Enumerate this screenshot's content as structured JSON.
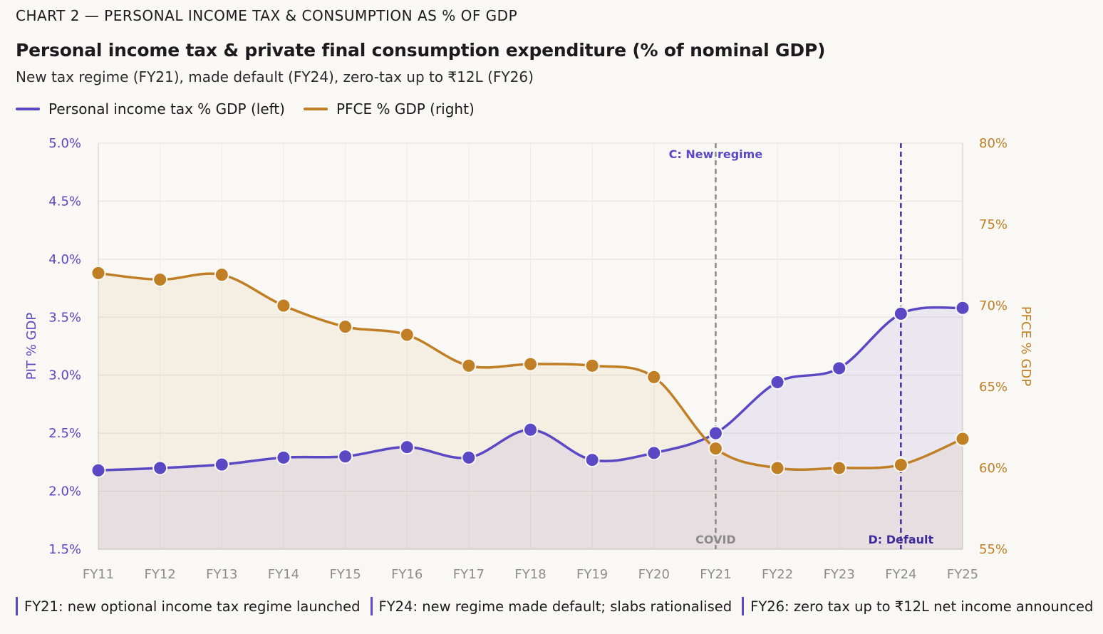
{
  "header": {
    "kicker": "CHART 2 — PERSONAL INCOME TAX & CONSUMPTION AS % OF GDP",
    "title": "Personal income tax & private final consumption expenditure (% of nominal GDP)",
    "subtitle": "New tax regime (FY21), made default (FY24), zero-tax up to ₹12L (FY26)"
  },
  "colors": {
    "pit": "#5a48c4",
    "pfce": "#c07f25",
    "covid_line": "#8a8a8a",
    "default_line": "#3f2c9e",
    "annotation": "#5a48c4",
    "footnote_bar": "#5a48c4"
  },
  "legend": [
    {
      "label": "Personal income tax % GDP (left)",
      "color": "#5a48c4"
    },
    {
      "label": "PFCE % GDP (right)",
      "color": "#c07f25"
    }
  ],
  "chart_data": {
    "type": "line",
    "categories": [
      "FY11",
      "FY12",
      "FY13",
      "FY14",
      "FY15",
      "FY16",
      "FY17",
      "FY18",
      "FY19",
      "FY20",
      "FY21",
      "FY22",
      "FY23",
      "FY24",
      "FY25"
    ],
    "series": [
      {
        "name": "Personal income tax % GDP (left)",
        "axis": "left",
        "color": "#5a48c4",
        "values": [
          2.18,
          2.2,
          2.23,
          2.29,
          2.3,
          2.38,
          2.29,
          2.53,
          2.27,
          2.33,
          2.5,
          2.94,
          3.06,
          3.53,
          3.58
        ]
      },
      {
        "name": "PFCE % GDP (right)",
        "axis": "right",
        "color": "#c07f25",
        "values": [
          72.0,
          71.6,
          71.9,
          70.0,
          68.7,
          68.2,
          66.3,
          66.4,
          66.3,
          65.6,
          61.2,
          60.0,
          60.0,
          60.2,
          61.8
        ]
      }
    ],
    "left_axis": {
      "label": "PIT % GDP",
      "range": [
        1.5,
        5.0
      ],
      "ticks": [
        1.5,
        2.0,
        2.5,
        3.0,
        3.5,
        4.0,
        4.5,
        5.0
      ],
      "tick_labels": [
        "1.5%",
        "2.0%",
        "2.5%",
        "3.0%",
        "3.5%",
        "4.0%",
        "4.5%",
        "5.0%"
      ]
    },
    "right_axis": {
      "label": "PFCE % GDP",
      "range": [
        55,
        80
      ],
      "ticks": [
        55,
        60,
        65,
        70,
        75,
        80
      ],
      "tick_labels": [
        "55%",
        "60%",
        "65%",
        "70%",
        "75%",
        "80%"
      ]
    },
    "markers": [
      {
        "category": "FY21",
        "top_label": "C: New regime",
        "bottom_label": "COVID",
        "style": "covid"
      },
      {
        "category": "FY24",
        "top_label": "",
        "bottom_label": "D: Default",
        "style": "default"
      }
    ],
    "grid": true,
    "legend_position": "top-left"
  },
  "footnotes": [
    "FY21: new optional income tax regime launched",
    "FY24: new regime made default; slabs rationalised",
    "FY26: zero tax up to ₹12L net income announced"
  ]
}
